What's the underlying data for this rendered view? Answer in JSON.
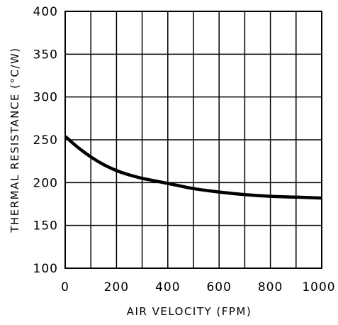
{
  "colors": {
    "grid": "#000000",
    "series": "#000000",
    "background": "#ffffff"
  },
  "chart_data": {
    "type": "line",
    "title": "",
    "xlabel": "AIR VELOCITY (FPM)",
    "ylabel": "THERMAL RESISTANCE (°C/W)",
    "xlim": [
      0,
      1000
    ],
    "ylim": [
      100,
      400
    ],
    "grid": true,
    "x_ticks": [
      "0",
      "200",
      "400",
      "600",
      "800",
      "1000"
    ],
    "y_ticks": [
      "100",
      "150",
      "200",
      "250",
      "300",
      "350",
      "400"
    ],
    "series": [
      {
        "x": [
          0,
          50,
          100,
          150,
          200,
          250,
          300,
          350,
          400,
          450,
          500,
          600,
          700,
          800,
          900,
          1000
        ],
        "y": [
          254,
          241,
          230,
          221,
          214,
          209,
          205,
          202,
          199,
          196,
          193,
          189,
          186,
          184,
          183,
          182
        ]
      }
    ]
  }
}
